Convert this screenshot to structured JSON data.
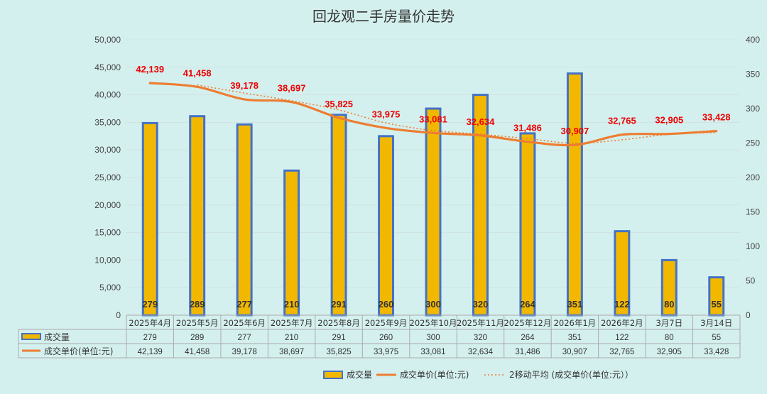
{
  "chart_data": {
    "type": "bar+line",
    "title": "回龙观二手房量价走势",
    "categories": [
      "2025年4月",
      "2025年5月",
      "2025年6月",
      "2025年7月",
      "2025年8月",
      "2025年9月",
      "2025年10月",
      "2025年11月",
      "2025年12月",
      "2026年1月",
      "2026年2月",
      "3月7日",
      "3月14日"
    ],
    "series": [
      {
        "name": "成交量",
        "type": "bar",
        "axis": "right",
        "values": [
          279,
          289,
          277,
          210,
          291,
          260,
          300,
          320,
          264,
          351,
          122,
          80,
          55
        ],
        "color": "#f2b800",
        "edge_color": "#4472c4"
      },
      {
        "name": "成交单价(单位:元)",
        "type": "line",
        "axis": "left",
        "values": [
          42139,
          41458,
          39178,
          38697,
          35825,
          33975,
          33081,
          32634,
          31486,
          30907,
          32765,
          32905,
          33428
        ],
        "color": "#ed7d31"
      }
    ],
    "trendline": {
      "label": "2移动平均 (成交单价(单位:元））",
      "type": "moving-average",
      "period": 2,
      "color": "#ed7d31"
    },
    "left_axis": {
      "min": 0,
      "max": 50000,
      "step": 5000,
      "ticks": [
        "0",
        "5,000",
        "10,000",
        "15,000",
        "20,000",
        "25,000",
        "30,000",
        "35,000",
        "40,000",
        "45,000",
        "50,000"
      ]
    },
    "right_axis": {
      "min": 0,
      "max": 400,
      "step": 50,
      "ticks": [
        "0",
        "50",
        "100",
        "150",
        "200",
        "250",
        "300",
        "350",
        "400"
      ]
    },
    "table": {
      "rows": [
        {
          "label": "成交量",
          "cells": [
            "279",
            "289",
            "277",
            "210",
            "291",
            "260",
            "300",
            "320",
            "264",
            "351",
            "122",
            "80",
            "55"
          ]
        },
        {
          "label": "成交单价(单位:元)",
          "cells": [
            "42,139",
            "41,458",
            "39,178",
            "38,697",
            "35,825",
            "33,975",
            "33,081",
            "32,634",
            "31,486",
            "30,907",
            "32,765",
            "32,905",
            "33,428"
          ]
        }
      ]
    },
    "price_labels": [
      "42,139",
      "41,458",
      "39,178",
      "38,697",
      "35,825",
      "33,975",
      "33,081",
      "32,634",
      "31,486",
      "30,907",
      "32,765",
      "32,905",
      "33,428"
    ],
    "grid": true,
    "legend": {
      "position": "bottom",
      "items": [
        "成交量",
        "成交单价(单位:元)",
        "2移动平均 (成交单价(单位:元））"
      ]
    }
  }
}
